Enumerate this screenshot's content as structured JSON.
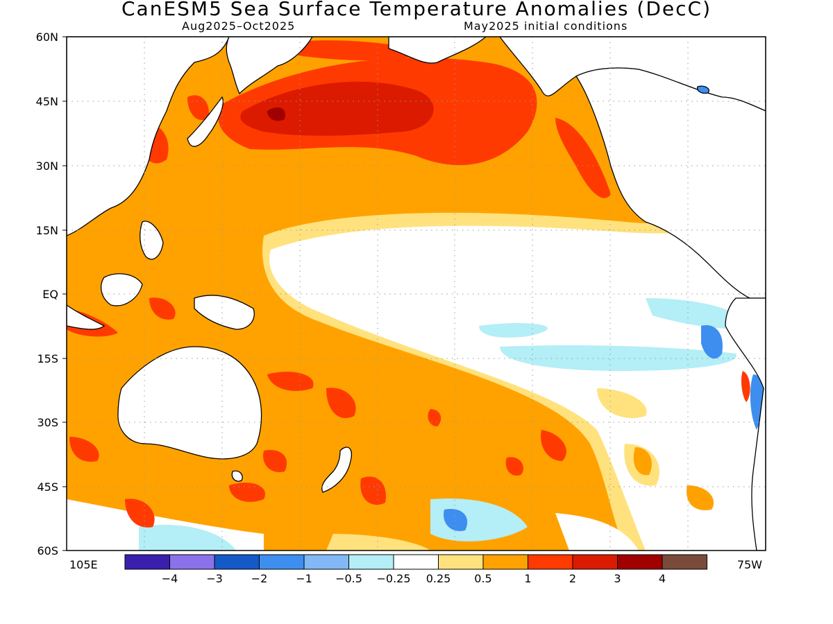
{
  "header": {
    "title": "CanESM5 Sea Surface Temperature Anomalies (DecC)",
    "period": "Aug2025–Oct2025",
    "init": "May2025 initial conditions"
  },
  "map": {
    "lat_labels": [
      "60N",
      "45N",
      "30N",
      "15N",
      "EQ",
      "15S",
      "30S",
      "45S",
      "60S"
    ],
    "lon_left": "105E",
    "lon_right": "75W"
  },
  "legend": {
    "colors": [
      "#3a1fae",
      "#8b72ea",
      "#1459c8",
      "#3e8ef0",
      "#82b8f5",
      "#b4eef6",
      "#ffffff",
      "#ffe27d",
      "#ffa200",
      "#ff3a00",
      "#dc1a00",
      "#a00000",
      "#7a4b3a"
    ],
    "labels": [
      "−4",
      "−3",
      "−2",
      "−1",
      "−0.5",
      "−0.25",
      "0.25",
      "0.5",
      "1",
      "2",
      "3",
      "4"
    ]
  }
}
